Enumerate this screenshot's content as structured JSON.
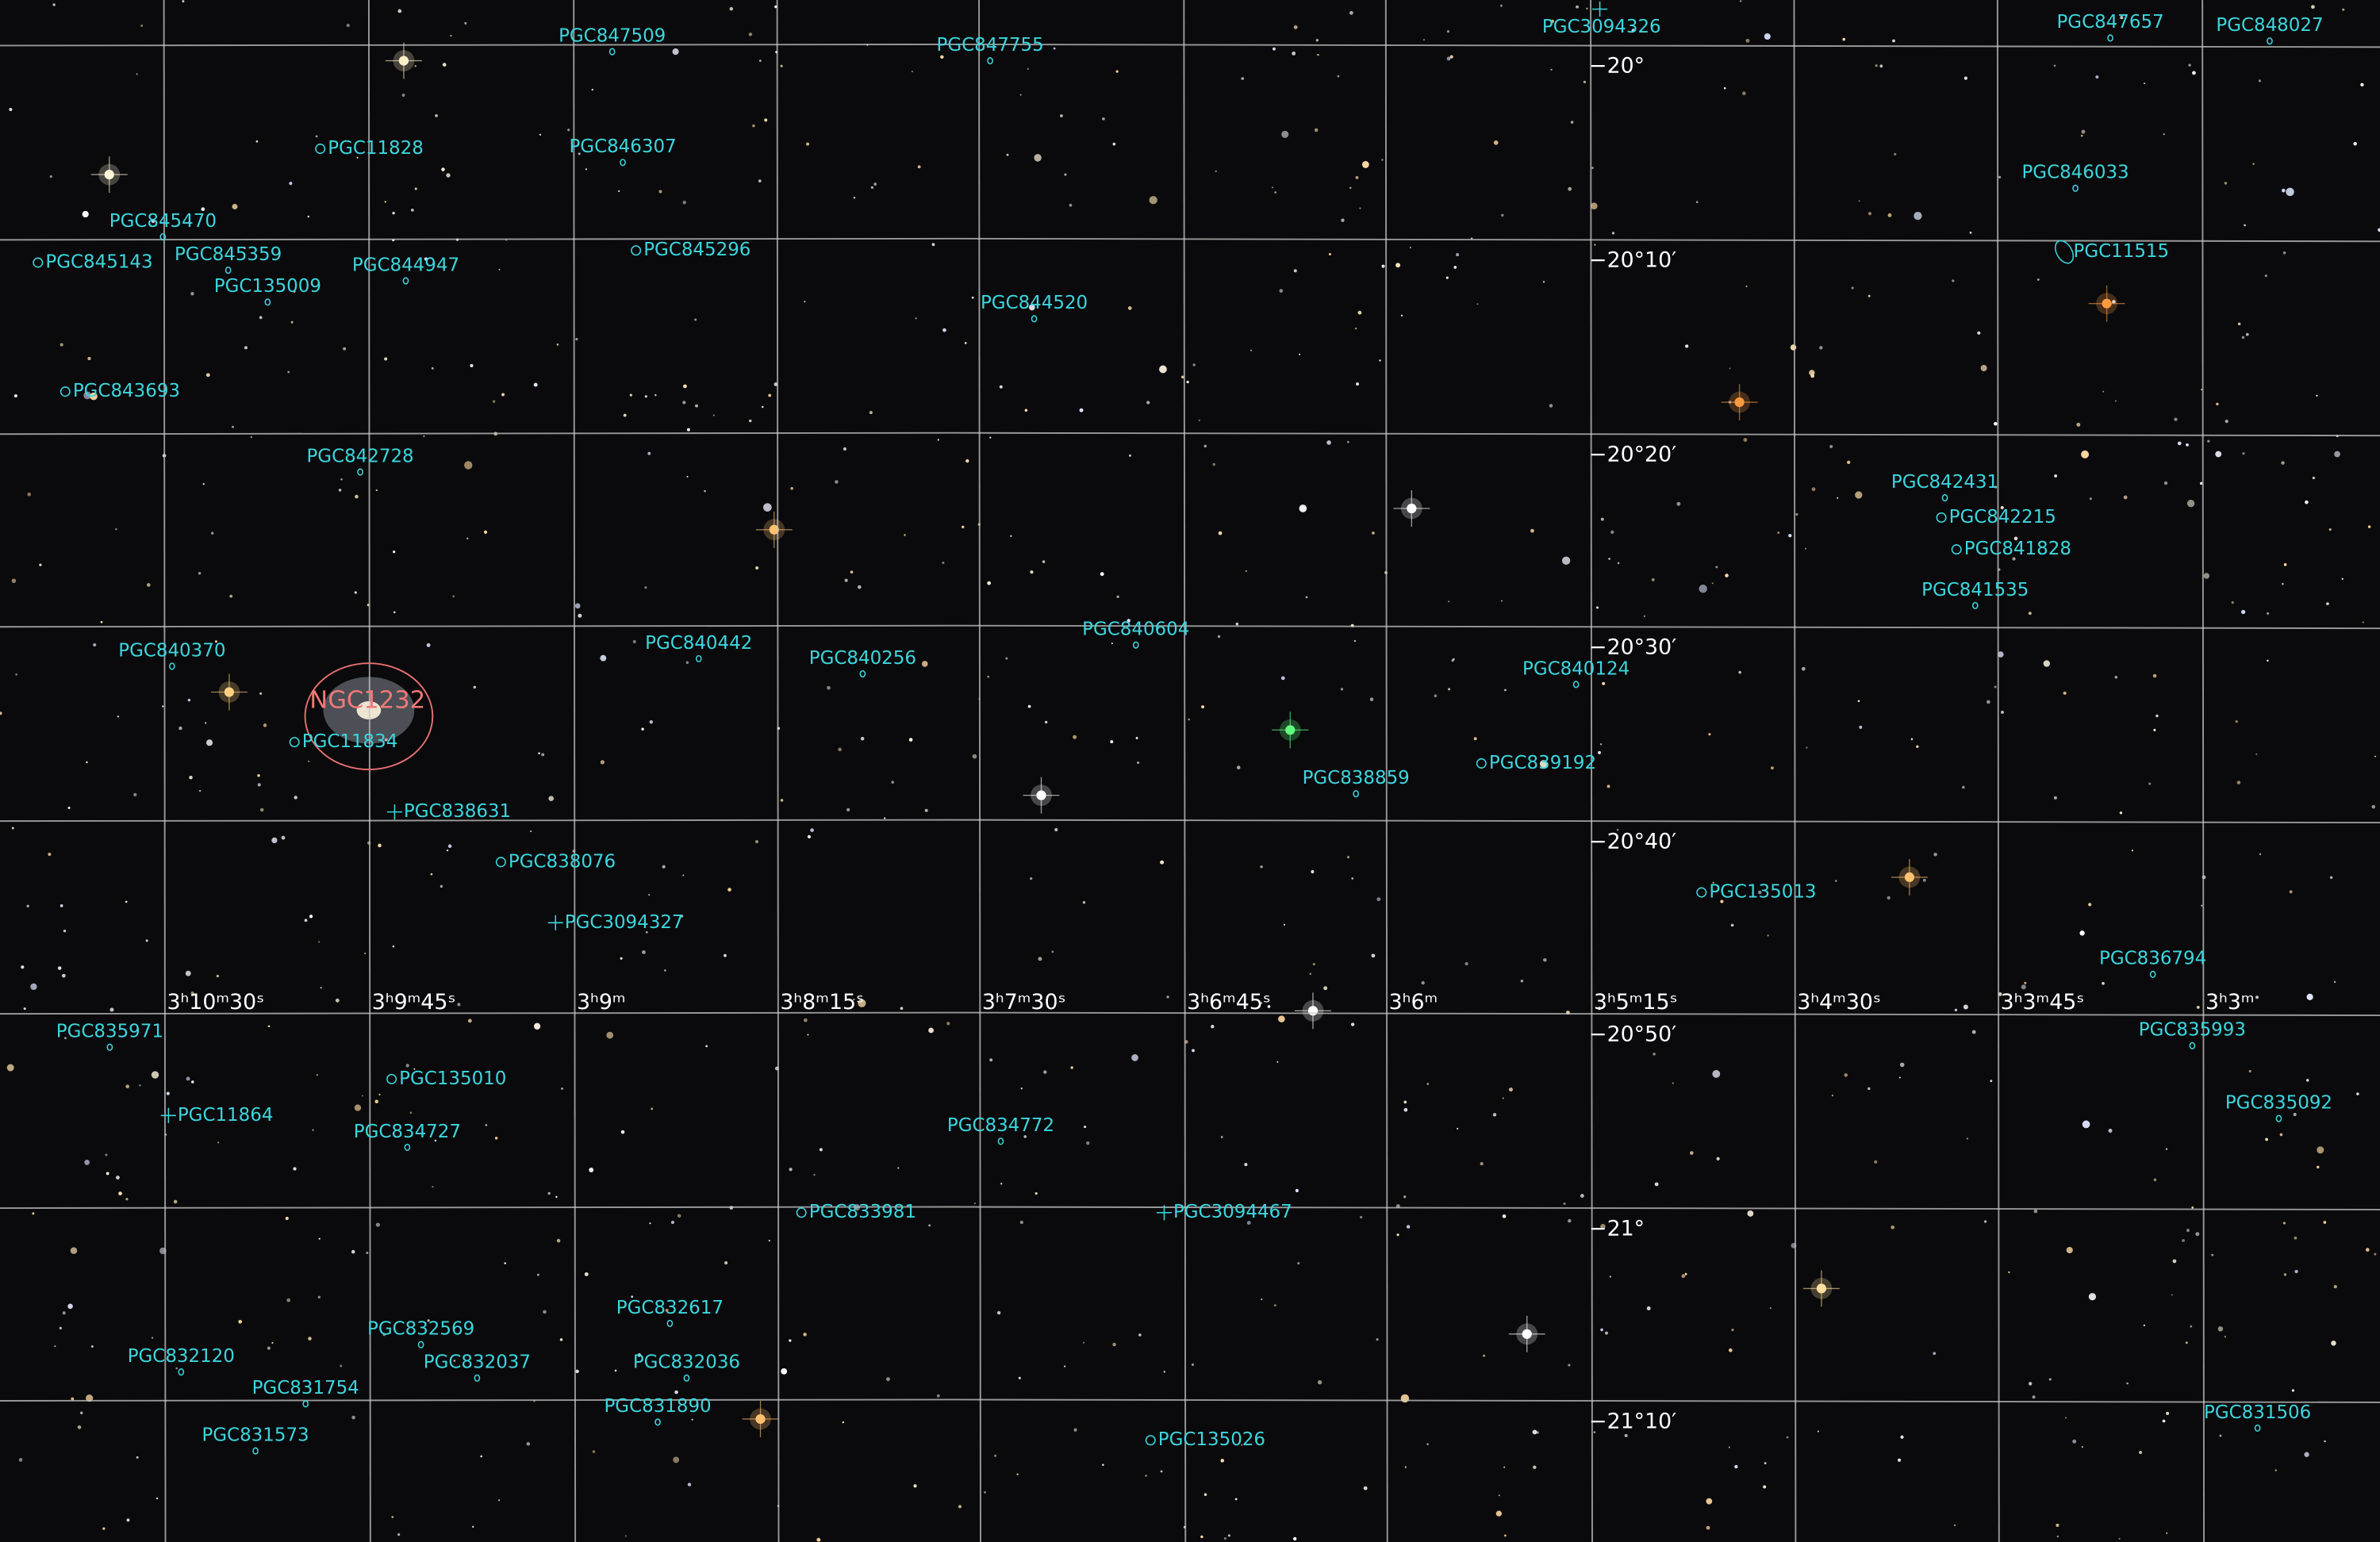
{
  "ra_labels": [
    "3ʰ10ᵐ30ˢ",
    "3ʰ9ᵐ45ˢ",
    "3ʰ9ᵐ",
    "3ʰ8ᵐ15ˢ",
    "3ʰ7ᵐ30ˢ",
    "3ʰ6ᵐ45ˢ",
    "3ʰ6ᵐ",
    "3ʰ5ᵐ15ˢ",
    "3ʰ4ᵐ30ˢ",
    "3ʰ3ᵐ45ˢ",
    "3ʰ3ᵐ"
  ],
  "dec_labels": [
    "−20°",
    "−20°10′",
    "−20°20′",
    "−20°30′",
    "−20°40′",
    "−20°50′",
    "−21°",
    "−21°10′"
  ],
  "main_object": "NGC1232",
  "objects": [
    "PGC847509",
    "PGC847755",
    "PGC3094326",
    "PGC847657",
    "PGC848027",
    "PGC11828",
    "PGC846307",
    "PGC846033",
    "PGC845470",
    "PGC845359",
    "PGC845143",
    "PGC135009",
    "PGC844947",
    "PGC845296",
    "PGC11515",
    "PGC844520",
    "PGC843693",
    "PGC842728",
    "PGC842431",
    "PGC842215",
    "PGC841828",
    "PGC841535",
    "PGC840370",
    "PGC840442",
    "PGC840256",
    "PGC840604",
    "PGC840124",
    "PGC11834",
    "PGC838859",
    "PGC839192",
    "PGC838631",
    "PGC838076",
    "PGC3094327",
    "PGC135013",
    "PGC836794",
    "PGC835971",
    "PGC835993",
    "PGC135010",
    "PGC11864",
    "PGC834727",
    "PGC834772",
    "PGC835092",
    "PGC833981",
    "PGC3094467",
    "PGC832617",
    "PGC832569",
    "PGC832120",
    "PGC832037",
    "PGC832036",
    "PGC831754",
    "PGC831890",
    "PGC831573",
    "PGC135026",
    "PGC831506"
  ]
}
